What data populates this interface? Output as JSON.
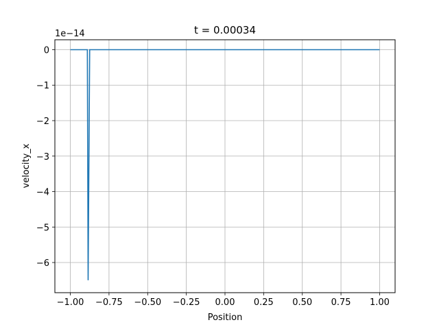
{
  "chart_data": {
    "type": "line",
    "title": "t = 0.00034",
    "xlabel": "Position",
    "ylabel": "velocity_x",
    "y_offset_label": "1e−14",
    "xlim": [
      -1.1,
      1.1
    ],
    "ylim": [
      -6.85,
      0.28
    ],
    "grid": true,
    "x_ticks": [
      -1.0,
      -0.75,
      -0.5,
      -0.25,
      0.0,
      0.25,
      0.5,
      0.75,
      1.0
    ],
    "x_tick_labels": [
      "−1.00",
      "−0.75",
      "−0.50",
      "−0.25",
      "0.00",
      "0.25",
      "0.50",
      "0.75",
      "1.00"
    ],
    "y_ticks": [
      0,
      -1,
      -2,
      -3,
      -4,
      -5,
      -6
    ],
    "y_tick_labels": [
      "0",
      "−1",
      "−2",
      "−3",
      "−4",
      "−5",
      "−6"
    ],
    "series": [
      {
        "name": "velocity_x",
        "color": "#1f77b4",
        "x": [
          -1.0,
          -0.89,
          -0.885,
          -0.875,
          -0.87,
          1.0
        ],
        "y": [
          0,
          0,
          -6.5,
          0,
          0,
          0
        ]
      }
    ]
  }
}
